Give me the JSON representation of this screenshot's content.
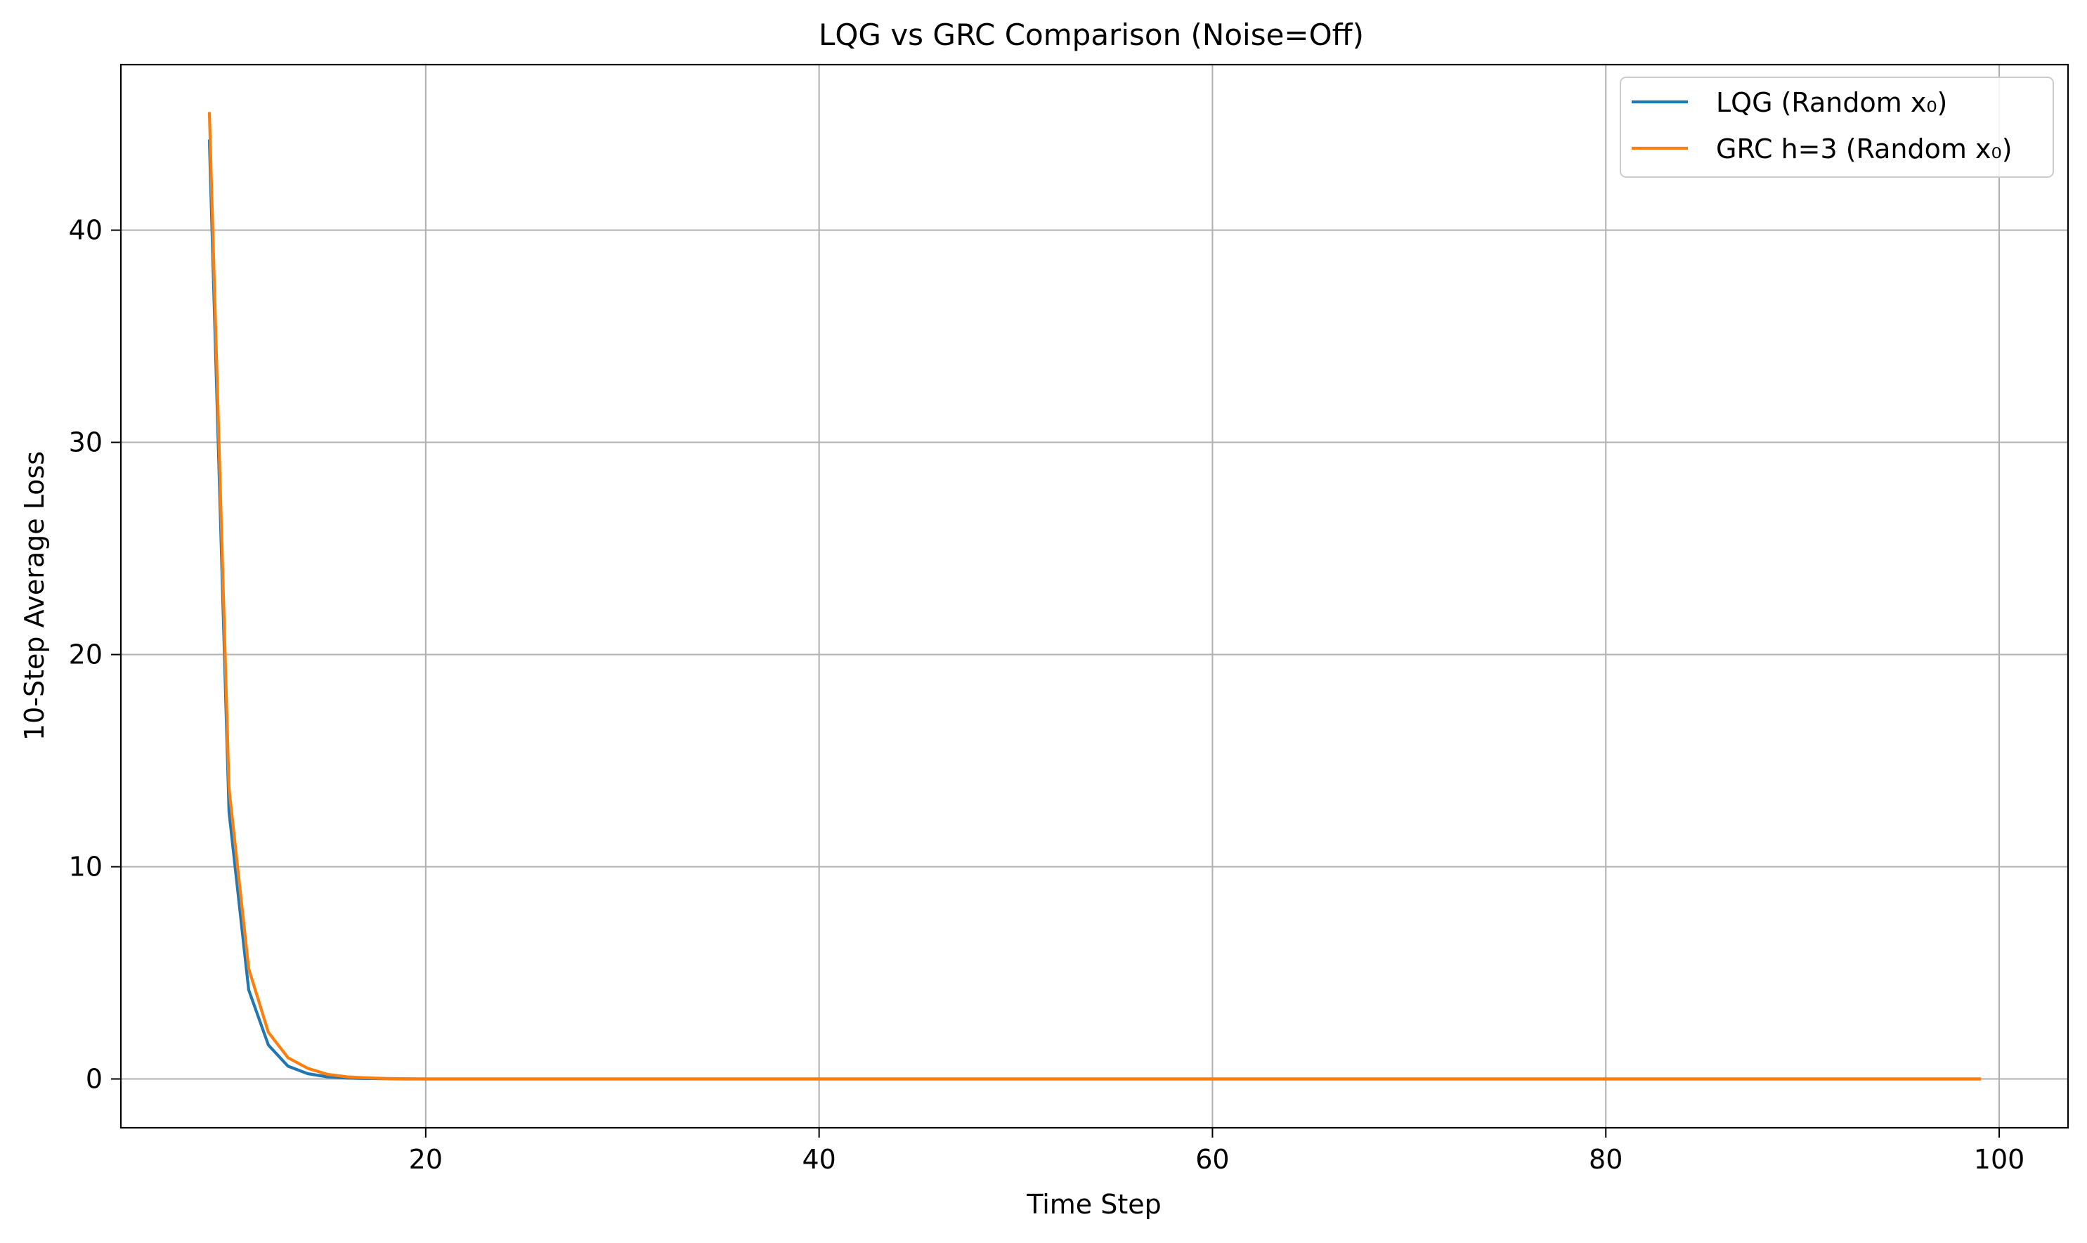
{
  "chart_data": {
    "type": "line",
    "title": "LQG vs GRC Comparison (Noise=Off)",
    "xlabel": "Time Step",
    "ylabel": "10-Step Average Loss",
    "xlim": [
      4.5,
      103.5
    ],
    "ylim": [
      -2.3,
      47.8
    ],
    "xticks": [
      20,
      40,
      60,
      80,
      100
    ],
    "yticks": [
      0,
      10,
      20,
      30,
      40
    ],
    "grid": true,
    "legend_position": "top-right",
    "series": [
      {
        "name": "LQG (Random x₀)",
        "color": "#1f77b4",
        "x": [
          9,
          10,
          11,
          12,
          13,
          14,
          15,
          16,
          17,
          18,
          19,
          20,
          99
        ],
        "y": [
          44.2,
          12.6,
          4.2,
          1.6,
          0.6,
          0.25,
          0.1,
          0.04,
          0.02,
          0.01,
          0.0,
          0.0,
          0.0
        ]
      },
      {
        "name": "GRC h=3 (Random x₀)",
        "color": "#ff7f0e",
        "x": [
          9,
          10,
          11,
          12,
          13,
          14,
          15,
          16,
          17,
          18,
          19,
          20,
          99
        ],
        "y": [
          45.5,
          13.7,
          5.2,
          2.2,
          1.0,
          0.5,
          0.22,
          0.1,
          0.05,
          0.02,
          0.01,
          0.0,
          0.0
        ]
      }
    ]
  }
}
